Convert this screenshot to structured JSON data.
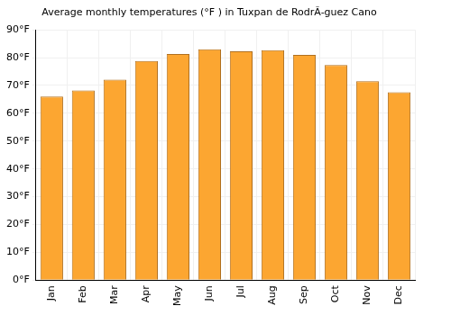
{
  "chart_data": {
    "type": "bar",
    "title": "Average monthly temperatures (°F ) in Tuxpan de RodrÃ-guez Cano",
    "categories": [
      "Jan",
      "Feb",
      "Mar",
      "Apr",
      "May",
      "Jun",
      "Jul",
      "Aug",
      "Sep",
      "Oct",
      "Nov",
      "Dec"
    ],
    "values": [
      66,
      68.2,
      72.1,
      78.8,
      81.3,
      83,
      82.3,
      82.7,
      81,
      77.4,
      71.5,
      67.6
    ],
    "color": "#fca631",
    "ylim": [
      0,
      90
    ],
    "yticks": [
      {
        "value": 0,
        "label": "0°F"
      },
      {
        "value": 10,
        "label": "10°F"
      },
      {
        "value": 20,
        "label": "20°F"
      },
      {
        "value": 30,
        "label": "30°F"
      },
      {
        "value": 40,
        "label": "40°F"
      },
      {
        "value": 50,
        "label": "50°F"
      },
      {
        "value": 60,
        "label": "60°F"
      },
      {
        "value": 70,
        "label": "70°F"
      },
      {
        "value": 80,
        "label": "80°F"
      },
      {
        "value": 90,
        "label": "90°F"
      }
    ],
    "grid": true
  }
}
